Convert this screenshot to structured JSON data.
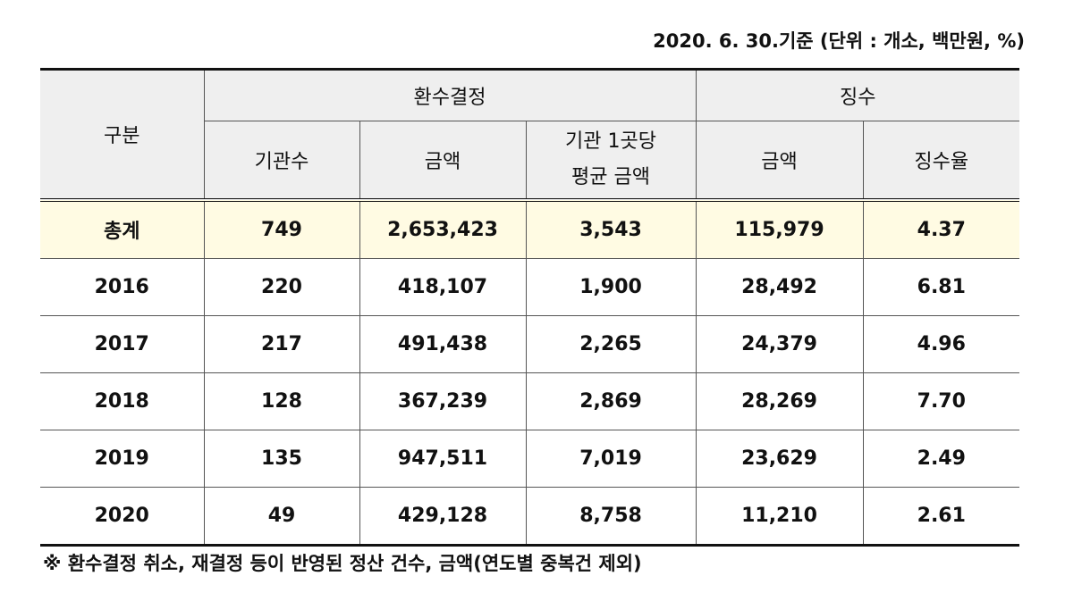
{
  "note": "2020. 6. 30.기준 (단위 : 개소, 백만원, %)",
  "table": {
    "header": {
      "category": "구분",
      "group1": "환수결정",
      "group2": "징수",
      "columns": [
        [
          "기관수"
        ],
        [
          "금액"
        ],
        [
          "기관 1곳당",
          "평균 금액"
        ],
        [
          "금액"
        ],
        [
          "징수율"
        ]
      ]
    },
    "rows": [
      [
        "총계",
        "749",
        "2,653,423",
        "3,543",
        "115,979",
        "4.37"
      ],
      [
        "2016",
        "220",
        "418,107",
        "1,900",
        "28,492",
        "6.81"
      ],
      [
        "2017",
        "217",
        "491,438",
        "2,265",
        "24,379",
        "4.96"
      ],
      [
        "2018",
        "128",
        "367,239",
        "2,869",
        "28,269",
        "7.70"
      ],
      [
        "2019",
        "135",
        "947,511",
        "7,019",
        "23,629",
        "2.49"
      ],
      [
        "2020",
        "49",
        "429,128",
        "8,758",
        "11,210",
        "2.61"
      ]
    ]
  },
  "footnote": "※ 환수결정 취소, 재결정 등이 반영된 정산 건수, 금액(연도별 중복건 제외)"
}
